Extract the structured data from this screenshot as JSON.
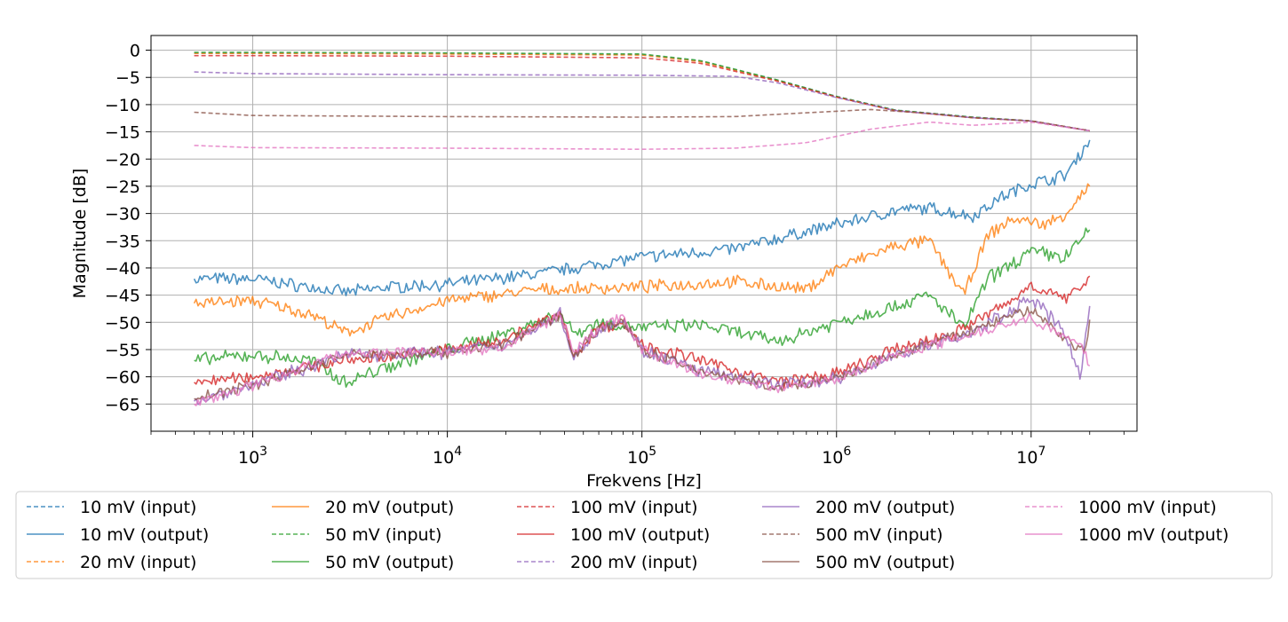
{
  "chart_data": {
    "type": "line",
    "xlabel": "Frekvens [Hz]",
    "ylabel": "Magnitude [dB]",
    "x_scale": "log",
    "xlim": [
      300,
      35000000
    ],
    "ylim": [
      -70,
      2.7
    ],
    "grid": true,
    "legend_position": "bottom",
    "x_ticks": [
      {
        "value": 1000,
        "base": "10",
        "exp": "3"
      },
      {
        "value": 10000,
        "base": "10",
        "exp": "4"
      },
      {
        "value": 100000,
        "base": "10",
        "exp": "5"
      },
      {
        "value": 1000000,
        "base": "10",
        "exp": "6"
      },
      {
        "value": 10000000,
        "base": "10",
        "exp": "7"
      }
    ],
    "y_ticks": [
      {
        "value": 0,
        "label": "0"
      },
      {
        "value": -5,
        "label": "−5"
      },
      {
        "value": -10,
        "label": "−10"
      },
      {
        "value": -15,
        "label": "−15"
      },
      {
        "value": -20,
        "label": "−20"
      },
      {
        "value": -25,
        "label": "−25"
      },
      {
        "value": -30,
        "label": "−30"
      },
      {
        "value": -35,
        "label": "−35"
      },
      {
        "value": -40,
        "label": "−40"
      },
      {
        "value": -45,
        "label": "−45"
      },
      {
        "value": -50,
        "label": "−50"
      },
      {
        "value": -55,
        "label": "−55"
      },
      {
        "value": -60,
        "label": "−60"
      },
      {
        "value": -65,
        "label": "−65"
      }
    ],
    "series": [
      {
        "name": "10 mV (input)",
        "color": "#1f77b4",
        "style": "dashed",
        "x": [
          500,
          1000,
          10000,
          100000,
          200000,
          500000,
          1000000,
          2000000,
          5000000,
          10000000,
          20000000
        ],
        "y": [
          -0.5,
          -0.5,
          -0.6,
          -0.8,
          -2.0,
          -5.5,
          -8.5,
          -11.0,
          -12.3,
          -13.0,
          -14.8
        ]
      },
      {
        "name": "10 mV (output)",
        "color": "#1f77b4",
        "style": "solid",
        "noise": 1.0,
        "x": [
          500,
          1000,
          3000,
          5000,
          10000,
          30000,
          100000,
          300000,
          1000000,
          2000000,
          3000000,
          5000000,
          7000000,
          10000000,
          15000000,
          20000000
        ],
        "y": [
          -42,
          -42,
          -44.5,
          -43.5,
          -43,
          -41,
          -38,
          -36.5,
          -32,
          -29.5,
          -29,
          -30.5,
          -27,
          -24.5,
          -23,
          -16.5
        ]
      },
      {
        "name": "20 mV (input)",
        "color": "#ff7f0e",
        "style": "dashed",
        "x": [
          500,
          1000,
          10000,
          100000,
          200000,
          500000,
          1000000,
          2000000,
          5000000,
          10000000,
          20000000
        ],
        "y": [
          -0.6,
          -0.6,
          -0.7,
          -0.9,
          -2.1,
          -5.6,
          -8.6,
          -11.1,
          -12.4,
          -13.0,
          -14.8
        ]
      },
      {
        "name": "20 mV (output)",
        "color": "#ff7f0e",
        "style": "solid",
        "noise": 1.0,
        "x": [
          500,
          1000,
          2000,
          3000,
          5000,
          10000,
          30000,
          100000,
          300000,
          700000,
          1000000,
          2000000,
          3000000,
          4500000,
          6000000,
          8000000,
          12000000,
          15000000,
          20000000
        ],
        "y": [
          -46.5,
          -46,
          -48.5,
          -52,
          -49,
          -46,
          -44,
          -43.5,
          -42.5,
          -44,
          -40,
          -36,
          -35,
          -45,
          -34,
          -31,
          -32,
          -30,
          -25
        ]
      },
      {
        "name": "50 mV (input)",
        "color": "#2ca02c",
        "style": "dashed",
        "x": [
          500,
          1000,
          10000,
          100000,
          200000,
          500000,
          1000000,
          2000000,
          5000000,
          10000000,
          20000000
        ],
        "y": [
          -0.4,
          -0.4,
          -0.5,
          -0.7,
          -1.9,
          -5.5,
          -8.5,
          -11.0,
          -12.3,
          -13.0,
          -14.8
        ]
      },
      {
        "name": "50 mV (output)",
        "color": "#2ca02c",
        "style": "solid",
        "noise": 1.1,
        "x": [
          500,
          1000,
          2000,
          3000,
          5000,
          10000,
          20000,
          38000,
          45000,
          60000,
          100000,
          200000,
          500000,
          1000000,
          2000000,
          3000000,
          4500000,
          6000000,
          10000000,
          15000000,
          20000000
        ],
        "y": [
          -57,
          -56,
          -57,
          -61,
          -58,
          -55,
          -52,
          -48.5,
          -52,
          -50,
          -51,
          -50.5,
          -53.5,
          -50,
          -47,
          -45,
          -51,
          -42,
          -37,
          -38,
          -33
        ]
      },
      {
        "name": "100 mV (input)",
        "color": "#d62728",
        "style": "dashed",
        "x": [
          500,
          1000,
          10000,
          100000,
          200000,
          500000,
          1000000,
          2000000,
          5000000,
          10000000,
          20000000
        ],
        "y": [
          -1.0,
          -1.0,
          -1.1,
          -1.4,
          -2.4,
          -5.7,
          -8.6,
          -11.1,
          -12.4,
          -13.0,
          -14.8
        ]
      },
      {
        "name": "100 mV (output)",
        "color": "#d62728",
        "style": "solid",
        "noise": 1.0,
        "x": [
          500,
          1000,
          3000,
          10000,
          20000,
          38000,
          45000,
          60000,
          80000,
          100000,
          200000,
          500000,
          1000000,
          2000000,
          4000000,
          8000000,
          10000000,
          15000000,
          20000000
        ],
        "y": [
          -61,
          -60,
          -57,
          -55,
          -53,
          -48.5,
          -56,
          -51,
          -50,
          -54,
          -57,
          -61,
          -59.5,
          -55,
          -52,
          -46,
          -43,
          -46,
          -41.5
        ]
      },
      {
        "name": "200 mV (input)",
        "color": "#9467bd",
        "style": "dashed",
        "x": [
          500,
          1000,
          10000,
          100000,
          300000,
          500000,
          1000000,
          2000000,
          5000000,
          10000000,
          20000000
        ],
        "y": [
          -4.0,
          -4.3,
          -4.5,
          -4.6,
          -4.8,
          -6.0,
          -8.7,
          -11.1,
          -12.4,
          -13.0,
          -14.8
        ]
      },
      {
        "name": "200 mV (output)",
        "color": "#9467bd",
        "style": "solid",
        "noise": 1.1,
        "x": [
          500,
          1000,
          3000,
          10000,
          20000,
          38000,
          45000,
          60000,
          80000,
          100000,
          200000,
          500000,
          1000000,
          2000000,
          5000000,
          10000000,
          15000000,
          18000000,
          20000000
        ],
        "y": [
          -64.5,
          -61.5,
          -56,
          -55.5,
          -54,
          -48.5,
          -56.5,
          -51,
          -49.5,
          -55,
          -59,
          -61.5,
          -60.5,
          -56,
          -52,
          -45.5,
          -52,
          -60,
          -47
        ]
      },
      {
        "name": "500 mV (input)",
        "color": "#8c564b",
        "style": "dashed",
        "x": [
          500,
          1000,
          10000,
          100000,
          300000,
          700000,
          1500000,
          3000000,
          5000000,
          10000000,
          20000000
        ],
        "y": [
          -11.4,
          -12.0,
          -12.2,
          -12.3,
          -12.2,
          -11.5,
          -10.9,
          -11.6,
          -12.4,
          -13.0,
          -14.8
        ]
      },
      {
        "name": "500 mV (output)",
        "color": "#8c564b",
        "style": "solid",
        "noise": 0.9,
        "x": [
          500,
          1000,
          3000,
          10000,
          20000,
          38000,
          45000,
          60000,
          80000,
          100000,
          200000,
          500000,
          1000000,
          2000000,
          5000000,
          10000000,
          15000000,
          19000000,
          20000000
        ],
        "y": [
          -64,
          -61.5,
          -56,
          -55.5,
          -54,
          -48.5,
          -56,
          -51,
          -50,
          -55,
          -59,
          -62,
          -60.5,
          -56,
          -51.5,
          -47.5,
          -53,
          -55.5,
          -49.5
        ]
      },
      {
        "name": "1000 mV (input)",
        "color": "#e377c2",
        "style": "dashed",
        "x": [
          500,
          1000,
          10000,
          100000,
          300000,
          700000,
          1500000,
          3000000,
          5000000,
          10000000,
          20000000
        ],
        "y": [
          -17.5,
          -17.9,
          -18.0,
          -18.2,
          -18.0,
          -17.0,
          -14.5,
          -13.2,
          -13.8,
          -13.2,
          -14.8
        ]
      },
      {
        "name": "1000 mV (output)",
        "color": "#e377c2",
        "style": "solid",
        "noise": 0.9,
        "x": [
          500,
          1000,
          3000,
          10000,
          20000,
          38000,
          45000,
          60000,
          80000,
          100000,
          200000,
          500000,
          1000000,
          2000000,
          5000000,
          10000000,
          15000000,
          19000000,
          20000000
        ],
        "y": [
          -65,
          -61.5,
          -55.5,
          -55.5,
          -54.5,
          -48.5,
          -55.5,
          -51,
          -49,
          -55,
          -59.5,
          -62,
          -60.5,
          -56,
          -52,
          -49,
          -53,
          -55,
          -58
        ]
      }
    ]
  }
}
